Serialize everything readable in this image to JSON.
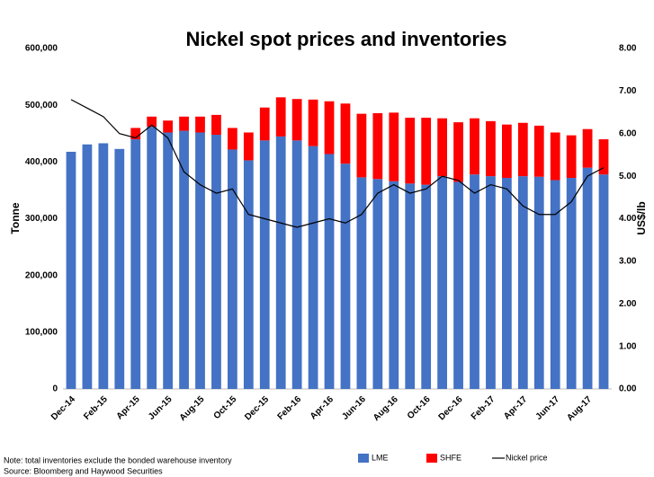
{
  "chart_data": {
    "type": "bar",
    "stacked": true,
    "title": "Nickel spot prices and inventories",
    "y_label": "Tonne",
    "y2_label": "US$/lb",
    "notes": [
      "Note: total inventories exclude the bonded warehouse inventory",
      "Source: Bloomberg and Haywood Securities"
    ],
    "categories": [
      "Dec-14",
      null,
      "Feb-15",
      null,
      "Apr-15",
      null,
      "Jun-15",
      null,
      "Aug-15",
      null,
      "Oct-15",
      null,
      "Dec-15",
      null,
      "Feb-16",
      null,
      "Apr-16",
      null,
      "Jun-16",
      null,
      "Aug-16",
      null,
      "Oct-16",
      null,
      "Dec-16",
      null,
      "Feb-17",
      null,
      "Apr-17",
      null,
      "Jun-17",
      null,
      "Aug-17",
      null
    ],
    "series": [
      {
        "name": "LME",
        "type": "bar",
        "color": "#4472c4",
        "values": [
          418000,
          431000,
          433000,
          423000,
          440000,
          462000,
          452000,
          455000,
          452000,
          448000,
          422000,
          403000,
          438000,
          445000,
          438000,
          428000,
          414000,
          397000,
          373000,
          370000,
          366000,
          362000,
          360000,
          375000,
          365000,
          378000,
          375000,
          372000,
          375000,
          374000,
          368000,
          372000,
          390000,
          378000
        ]
      },
      {
        "name": "SHFE",
        "type": "bar",
        "color": "#ff0000",
        "values": [
          0,
          0,
          0,
          0,
          20000,
          18000,
          21000,
          25000,
          28000,
          35000,
          38000,
          49000,
          58000,
          69000,
          73000,
          82000,
          93000,
          106000,
          112000,
          116000,
          121000,
          116000,
          118000,
          102000,
          105000,
          99000,
          97000,
          94000,
          94000,
          90000,
          84000,
          75000,
          68000,
          62000
        ]
      },
      {
        "name": "Nickel price",
        "type": "line",
        "axis": "y2",
        "color": "#000000",
        "values": [
          6.8,
          6.6,
          6.4,
          6.0,
          5.9,
          6.2,
          5.9,
          5.1,
          4.8,
          4.6,
          4.7,
          4.1,
          4.0,
          3.9,
          3.8,
          3.9,
          4.0,
          3.9,
          4.1,
          4.6,
          4.8,
          4.6,
          4.7,
          5.0,
          4.9,
          4.6,
          4.8,
          4.7,
          4.3,
          4.1,
          4.1,
          4.4,
          5.0,
          5.2
        ]
      }
    ],
    "ylim": [
      0,
      600000
    ],
    "yticks": [
      {
        "value": 0,
        "label": "0"
      },
      {
        "value": 100000,
        "label": "100,000"
      },
      {
        "value": 200000,
        "label": "200,000"
      },
      {
        "value": 300000,
        "label": "300,000"
      },
      {
        "value": 400000,
        "label": "400,000"
      },
      {
        "value": 500000,
        "label": "500,000"
      },
      {
        "value": 600000,
        "label": "600,000"
      }
    ],
    "y2lim": [
      0,
      8
    ],
    "y2ticks": [
      {
        "value": 0,
        "label": "0.00"
      },
      {
        "value": 1,
        "label": "1.00"
      },
      {
        "value": 2,
        "label": "2.00"
      },
      {
        "value": 3,
        "label": "3.00"
      },
      {
        "value": 4,
        "label": "4.00"
      },
      {
        "value": 5,
        "label": "5.00"
      },
      {
        "value": 6,
        "label": "6.00"
      },
      {
        "value": 7,
        "label": "7.00"
      },
      {
        "value": 8,
        "label": "8.00"
      }
    ],
    "legend": "bottom"
  }
}
